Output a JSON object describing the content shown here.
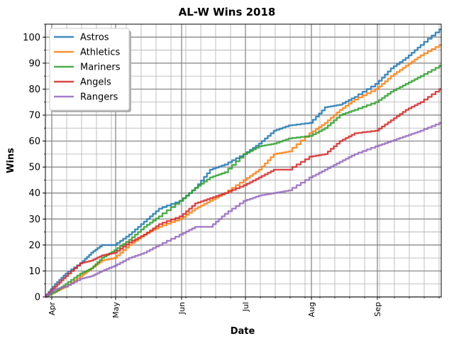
{
  "chart_data": {
    "type": "line",
    "title": "AL-W Wins 2018",
    "xlabel": "Date",
    "ylabel": "Wins",
    "x_type": "date",
    "xlim": [
      "2018-03-29",
      "2018-10-01"
    ],
    "ylim": [
      0,
      105
    ],
    "yticks": [
      0,
      10,
      20,
      30,
      40,
      50,
      60,
      70,
      80,
      90,
      100
    ],
    "xticks": [
      {
        "date": "2018-04-01",
        "label": "Apr"
      },
      {
        "date": "2018-05-01",
        "label": "May"
      },
      {
        "date": "2018-06-01",
        "label": "Jun"
      },
      {
        "date": "2018-07-01",
        "label": "Jul"
      },
      {
        "date": "2018-08-01",
        "label": "Aug"
      },
      {
        "date": "2018-09-01",
        "label": "Sep"
      }
    ],
    "minor_x_ticks": "weekly",
    "minor_y_step": 5,
    "grid": true,
    "legend_position": "top-left",
    "series": [
      {
        "name": "Astros",
        "color": "#1f77b4",
        "x": [
          "2018-03-29",
          "2018-04-03",
          "2018-04-08",
          "2018-04-15",
          "2018-04-20",
          "2018-04-25",
          "2018-05-01",
          "2018-05-08",
          "2018-05-15",
          "2018-05-22",
          "2018-06-01",
          "2018-06-08",
          "2018-06-15",
          "2018-06-22",
          "2018-07-01",
          "2018-07-08",
          "2018-07-15",
          "2018-07-22",
          "2018-08-01",
          "2018-08-08",
          "2018-08-15",
          "2018-08-22",
          "2018-09-01",
          "2018-09-08",
          "2018-09-15",
          "2018-09-22",
          "2018-10-01"
        ],
        "y": [
          0,
          5,
          9,
          13,
          17,
          20,
          20,
          24,
          29,
          34,
          37,
          42,
          49,
          51,
          55,
          59,
          64,
          66,
          67,
          73,
          74,
          77,
          82,
          88,
          92,
          97,
          103
        ]
      },
      {
        "name": "Athletics",
        "color": "#ff7f0e",
        "x": [
          "2018-03-29",
          "2018-04-03",
          "2018-04-08",
          "2018-04-15",
          "2018-04-20",
          "2018-04-25",
          "2018-05-01",
          "2018-05-08",
          "2018-05-15",
          "2018-05-22",
          "2018-06-01",
          "2018-06-08",
          "2018-06-15",
          "2018-06-22",
          "2018-07-01",
          "2018-07-08",
          "2018-07-15",
          "2018-07-22",
          "2018-08-01",
          "2018-08-08",
          "2018-08-15",
          "2018-08-22",
          "2018-09-01",
          "2018-09-08",
          "2018-09-15",
          "2018-09-22",
          "2018-10-01"
        ],
        "y": [
          0,
          2,
          4,
          8,
          11,
          14,
          15,
          20,
          24,
          27,
          30,
          34,
          37,
          40,
          45,
          49,
          55,
          56,
          63,
          67,
          72,
          76,
          80,
          85,
          89,
          93,
          97
        ]
      },
      {
        "name": "Mariners",
        "color": "#2ca02c",
        "x": [
          "2018-03-29",
          "2018-04-03",
          "2018-04-08",
          "2018-04-15",
          "2018-04-20",
          "2018-04-25",
          "2018-05-01",
          "2018-05-08",
          "2018-05-15",
          "2018-05-22",
          "2018-06-01",
          "2018-06-08",
          "2018-06-15",
          "2018-06-22",
          "2018-07-01",
          "2018-07-08",
          "2018-07-15",
          "2018-07-22",
          "2018-08-01",
          "2018-08-08",
          "2018-08-15",
          "2018-08-22",
          "2018-09-01",
          "2018-09-08",
          "2018-09-15",
          "2018-09-22",
          "2018-10-01"
        ],
        "y": [
          0,
          2,
          5,
          9,
          11,
          15,
          18,
          22,
          27,
          31,
          37,
          42,
          46,
          48,
          55,
          58,
          59,
          61,
          62,
          65,
          70,
          72,
          75,
          79,
          82,
          85,
          89
        ]
      },
      {
        "name": "Angels",
        "color": "#d62728",
        "x": [
          "2018-03-29",
          "2018-04-03",
          "2018-04-08",
          "2018-04-15",
          "2018-04-20",
          "2018-04-25",
          "2018-05-01",
          "2018-05-08",
          "2018-05-15",
          "2018-05-22",
          "2018-06-01",
          "2018-06-08",
          "2018-06-15",
          "2018-06-22",
          "2018-07-01",
          "2018-07-08",
          "2018-07-15",
          "2018-07-22",
          "2018-08-01",
          "2018-08-08",
          "2018-08-15",
          "2018-08-22",
          "2018-09-01",
          "2018-09-08",
          "2018-09-15",
          "2018-09-22",
          "2018-10-01"
        ],
        "y": [
          0,
          4,
          8,
          13,
          14,
          16,
          17,
          21,
          24,
          28,
          31,
          36,
          38,
          40,
          43,
          46,
          49,
          49,
          54,
          55,
          60,
          63,
          64,
          68,
          72,
          75,
          80
        ]
      },
      {
        "name": "Rangers",
        "color": "#9467bd",
        "x": [
          "2018-03-29",
          "2018-04-03",
          "2018-04-08",
          "2018-04-15",
          "2018-04-20",
          "2018-04-25",
          "2018-05-01",
          "2018-05-08",
          "2018-05-15",
          "2018-05-22",
          "2018-06-01",
          "2018-06-08",
          "2018-06-15",
          "2018-06-22",
          "2018-07-01",
          "2018-07-08",
          "2018-07-15",
          "2018-07-22",
          "2018-08-01",
          "2018-08-08",
          "2018-08-15",
          "2018-08-22",
          "2018-09-01",
          "2018-09-08",
          "2018-09-15",
          "2018-09-22",
          "2018-10-01"
        ],
        "y": [
          0,
          3,
          4,
          7,
          8,
          10,
          12,
          15,
          17,
          20,
          24,
          27,
          27,
          32,
          37,
          39,
          40,
          41,
          46,
          49,
          52,
          55,
          58,
          60,
          62,
          64,
          67
        ]
      }
    ]
  }
}
